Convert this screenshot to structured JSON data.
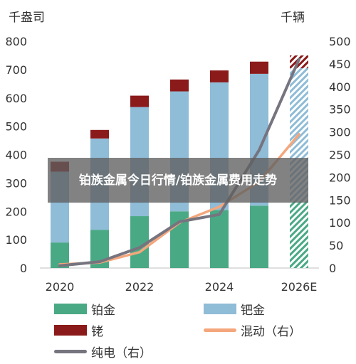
{
  "overlay_title": "铂族金属今日行情/铂族金属费用走势",
  "legend": {
    "platinum": "铂金",
    "palladium": "钯金",
    "rhodium": "铑",
    "hybrid": "混动（右）",
    "pure_ev": "纯电（右）"
  },
  "colors": {
    "platinum": "#4aa985",
    "palladium": "#8fbcd7",
    "rhodium": "#8b1a1a",
    "hybrid": "#f4a77c",
    "pure_ev": "#76747f"
  },
  "chart_data": {
    "type": "bar",
    "y_left_unit": "千盎司",
    "y_right_unit": "千辆",
    "ylim_left": [
      0,
      800
    ],
    "ylim_right": [
      0,
      500
    ],
    "yticks_left": [
      0,
      100,
      200,
      300,
      400,
      500,
      600,
      700,
      800
    ],
    "yticks_right": [
      0,
      50,
      100,
      150,
      200,
      250,
      300,
      350,
      400,
      450,
      500
    ],
    "x": [
      2020,
      2021,
      2022,
      2023,
      2024,
      2025,
      2026
    ],
    "xtick_labels": [
      "2020",
      "",
      "2022",
      "",
      "2024",
      "",
      "2026E"
    ],
    "stacked_bars": [
      {
        "key": "platinum",
        "name": "铂金",
        "values": [
          90,
          135,
          183,
          200,
          205,
          220,
          235
        ]
      },
      {
        "key": "palladium",
        "name": "钯金",
        "values": [
          250,
          322,
          385,
          423,
          450,
          465,
          470
        ]
      },
      {
        "key": "rhodium",
        "name": "铑",
        "values": [
          35,
          30,
          40,
          42,
          42,
          43,
          45
        ]
      }
    ],
    "forecast_index": 6,
    "lines": [
      {
        "key": "hybrid",
        "name": "混动（右）",
        "values": [
          8,
          12,
          35,
          100,
          135,
          190,
          295
        ]
      },
      {
        "key": "pure_ev",
        "name": "纯电（右）",
        "values": [
          5,
          14,
          45,
          102,
          118,
          260,
          460
        ]
      }
    ]
  }
}
